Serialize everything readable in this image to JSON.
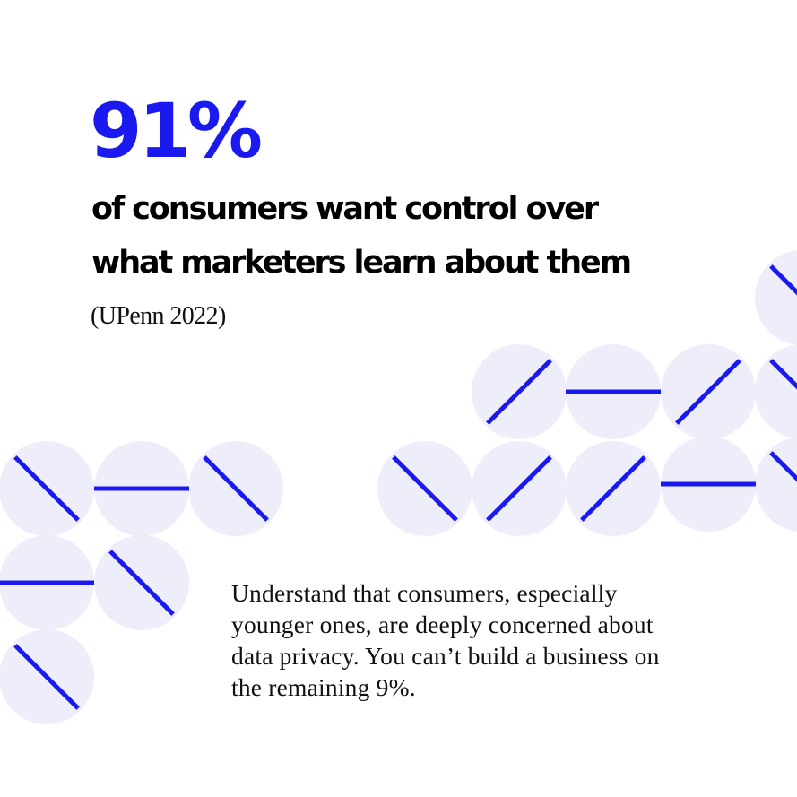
{
  "headline": {
    "stat": "91%",
    "line1": "of consumers want control over",
    "line2": "what marketers learn about them"
  },
  "source": "(UPenn 2022)",
  "body": {
    "line1": "Understand that consumers, especially",
    "line2": "younger ones, are deeply concerned about",
    "line3": "data privacy. You can’t build a business on",
    "line4": "the remaining 9%."
  },
  "colors": {
    "accent_blue": "#1a1af0",
    "circle_fill": "#eeeefb",
    "text": "#111111",
    "background": "#ffffff"
  }
}
